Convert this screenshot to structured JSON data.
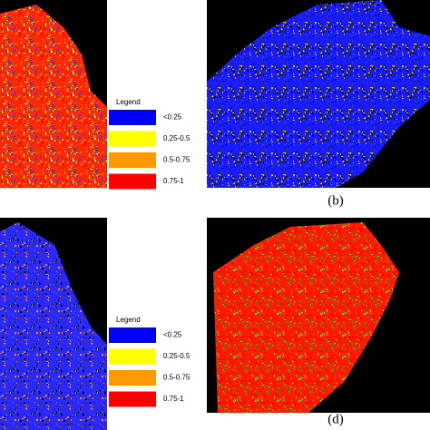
{
  "legends": [
    {
      "title": "Legend",
      "items": [
        {
          "label": "<0.25",
          "color": "#0000ff"
        },
        {
          "label": "0.25-0.5",
          "color": "#ffff00"
        },
        {
          "label": "0.5-0.75",
          "color": "#ff9900"
        },
        {
          "label": "0.75-1",
          "color": "#ff0000"
        }
      ]
    },
    {
      "title": "Legend",
      "items": [
        {
          "label": "<0.25",
          "color": "#0000ff"
        },
        {
          "label": "0.25-0.5",
          "color": "#ffff00"
        },
        {
          "label": "0.5-0.75",
          "color": "#ff9900"
        },
        {
          "label": "0.75-1",
          "color": "#ff0000"
        }
      ]
    }
  ],
  "panels": [
    {
      "label": "(b)"
    },
    {
      "label": "(d)"
    }
  ]
}
